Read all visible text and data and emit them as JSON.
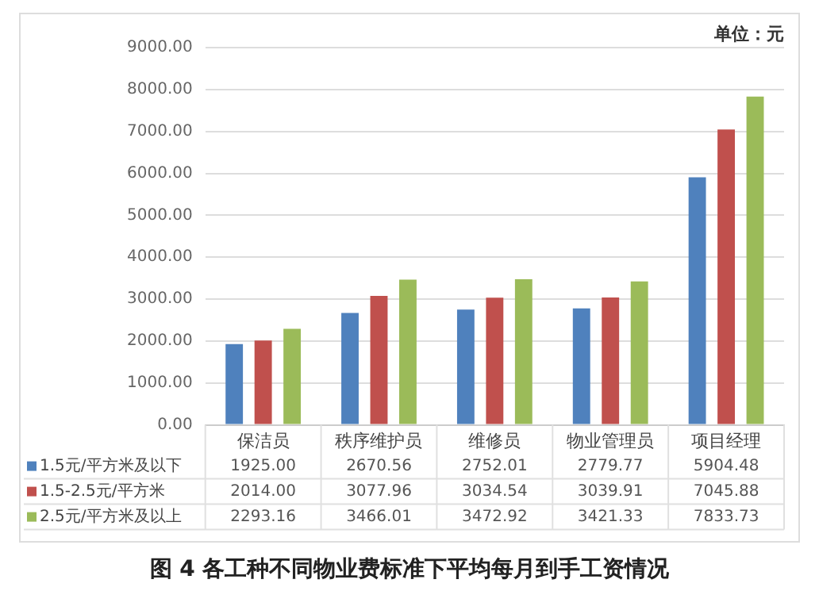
{
  "chart_data": {
    "type": "bar",
    "title": "图 4 各工种不同物业费标准下平均每月到手工资情况",
    "categories": [
      "保洁员",
      "秩序维护员",
      "维修员",
      "物业管理员",
      "项目经理"
    ],
    "series": [
      {
        "name": "1.5元/平方米及以下",
        "color": "#4f81bd",
        "values": [
          1925.0,
          2670.56,
          2752.01,
          2779.77,
          5904.48
        ],
        "value_labels": [
          "1925.00",
          "2670.56",
          "2752.01",
          "2779.77",
          "5904.48"
        ]
      },
      {
        "name": "1.5-2.5元/平方米",
        "color": "#c0504d",
        "values": [
          2014.0,
          3077.96,
          3034.54,
          3039.91,
          7045.88
        ],
        "value_labels": [
          "2014.00",
          "3077.96",
          "3034.54",
          "3039.91",
          "7045.88"
        ]
      },
      {
        "name": "2.5元/平方米及以上",
        "color": "#9bbb59",
        "values": [
          2293.16,
          3466.01,
          3472.92,
          3421.33,
          7833.73
        ],
        "value_labels": [
          "2293.16",
          "3466.01",
          "3472.92",
          "3421.33",
          "7833.73"
        ]
      }
    ],
    "ylim": [
      0,
      9000
    ],
    "yticks": [
      {
        "value": 0,
        "label": "0.00"
      },
      {
        "value": 1000,
        "label": "1000.00"
      },
      {
        "value": 2000,
        "label": "2000.00"
      },
      {
        "value": 3000,
        "label": "3000.00"
      },
      {
        "value": 4000,
        "label": "4000.00"
      },
      {
        "value": 5000,
        "label": "5000.00"
      },
      {
        "value": 6000,
        "label": "6000.00"
      },
      {
        "value": 7000,
        "label": "7000.00"
      },
      {
        "value": 8000,
        "label": "8000.00"
      },
      {
        "value": 9000,
        "label": "9000.00"
      }
    ],
    "grid": "y",
    "legend": "bottom",
    "annotations": [
      "单位：元"
    ]
  }
}
